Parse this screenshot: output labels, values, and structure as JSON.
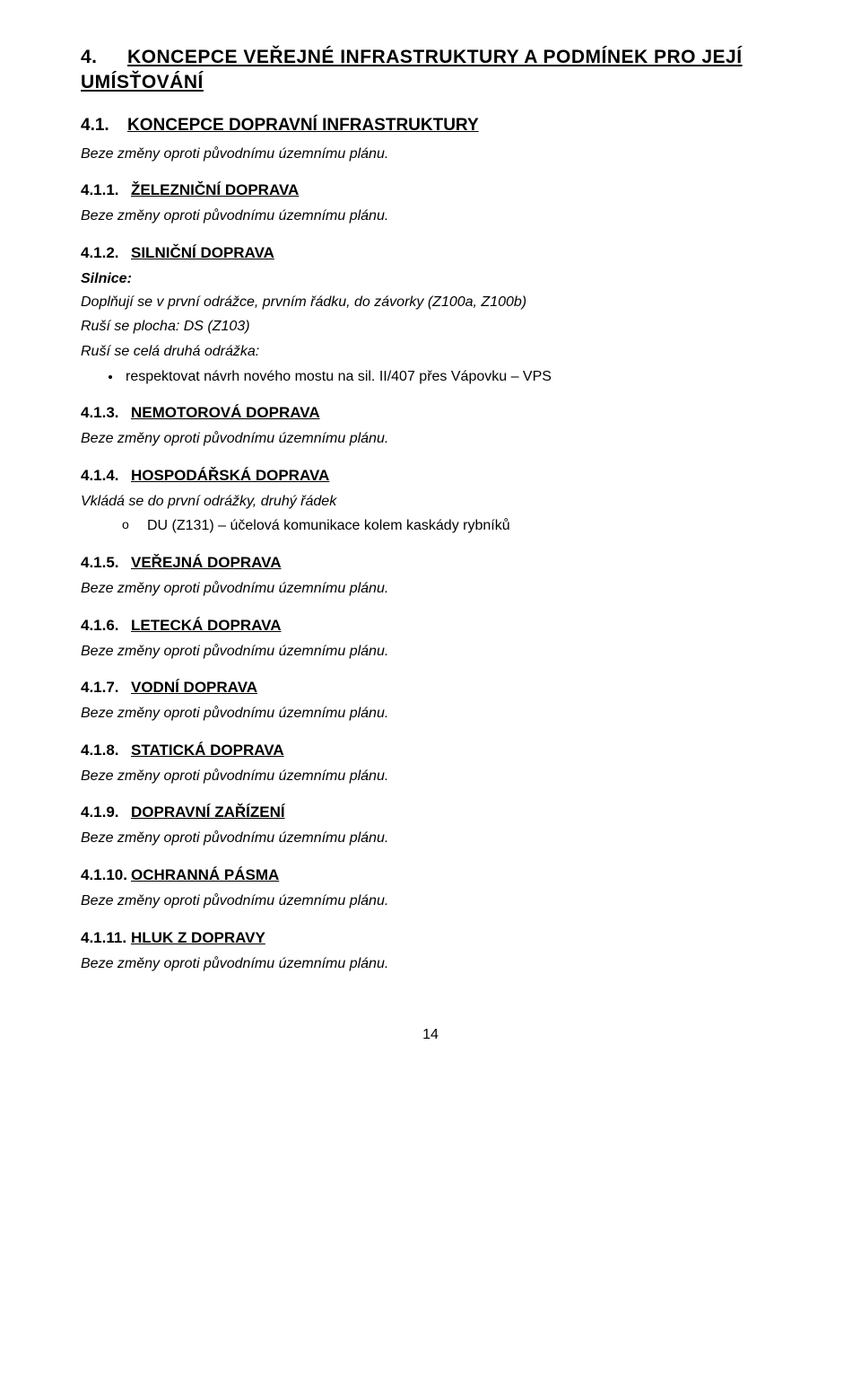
{
  "heading4": {
    "num": "4.",
    "title_line1": "KONCEPCE VEŘEJNÉ INFRASTRUKTURY A PODMÍNEK PRO JEJÍ",
    "title_line2": "UMÍSŤOVÁNÍ"
  },
  "heading41": {
    "num": "4.1.",
    "title": "KONCEPCE DOPRAVNÍ INFRASTRUKTURY"
  },
  "nochange": "Beze změny oproti původnímu územnímu plánu.",
  "s411": {
    "num": "4.1.1.",
    "title": "ŽELEZNIČNÍ DOPRAVA"
  },
  "s412": {
    "num": "4.1.2.",
    "title": "SILNIČNÍ DOPRAVA",
    "silnice_label": "Silnice:",
    "p1": "Doplňují se v první odrážce, prvním řádku, do závorky (Z100a, Z100b)",
    "p2": "Ruší se plocha:  DS (Z103)",
    "p3": "Ruší se celá druhá odrážka:",
    "bullet": "respektovat návrh nového mostu na sil. II/407 přes Vápovku – VPS"
  },
  "s413": {
    "num": "4.1.3.",
    "title": "NEMOTOROVÁ DOPRAVA"
  },
  "s414": {
    "num": "4.1.4.",
    "title": "HOSPODÁŘSKÁ DOPRAVA",
    "p1": "Vkládá se do první odrážky, druhý řádek",
    "bullet": "DU (Z131) – účelová komunikace kolem kaskády rybníků"
  },
  "s415": {
    "num": "4.1.5.",
    "title": "VEŘEJNÁ DOPRAVA"
  },
  "s416": {
    "num": "4.1.6.",
    "title": "LETECKÁ DOPRAVA"
  },
  "s417": {
    "num": "4.1.7.",
    "title": "VODNÍ DOPRAVA"
  },
  "s418": {
    "num": "4.1.8.",
    "title": "STATICKÁ DOPRAVA"
  },
  "s419": {
    "num": "4.1.9.",
    "title": "DOPRAVNÍ ZAŘÍZENÍ"
  },
  "s4110": {
    "num": "4.1.10.",
    "title": "OCHRANNÁ PÁSMA"
  },
  "s4111": {
    "num": "4.1.11.",
    "title": "HLUK Z DOPRAVY"
  },
  "pagenum": "14",
  "colors": {
    "text": "#000000",
    "background": "#ffffff"
  },
  "fonts": {
    "family": "Arial",
    "body_size_pt": 12,
    "h1_size_pt": 16,
    "h2_size_pt": 14,
    "h3_size_pt": 13
  }
}
